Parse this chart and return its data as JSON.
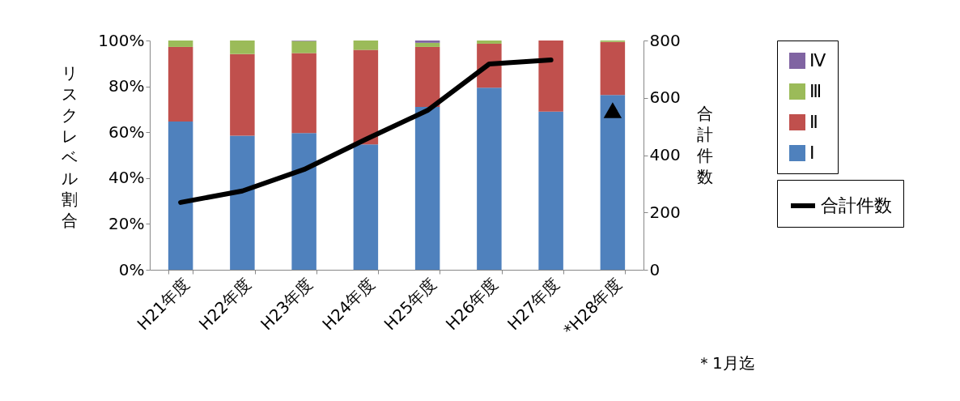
{
  "chart_data": {
    "type": "bar",
    "stacked": true,
    "categories": [
      "H21年度",
      "H22年度",
      "H23年度",
      "H24年度",
      "H25年度",
      "H26年度",
      "H27年度",
      "*H28年度"
    ],
    "series": [
      {
        "name": "Ⅰ",
        "type": "bar",
        "color": "#4f81bd",
        "values": [
          64.7,
          58.5,
          59.6,
          54.7,
          71.0,
          79.4,
          69.0,
          76.2
        ]
      },
      {
        "name": "Ⅱ",
        "type": "bar",
        "color": "#c0504d",
        "values": [
          32.5,
          35.6,
          34.9,
          41.2,
          26.2,
          19.2,
          31.0,
          23.2
        ]
      },
      {
        "name": "Ⅲ",
        "type": "bar",
        "color": "#9bbb59",
        "values": [
          2.8,
          5.9,
          5.3,
          4.1,
          1.8,
          1.4,
          0,
          0.6
        ]
      },
      {
        "name": "Ⅳ",
        "type": "bar",
        "color": "#8064a2",
        "values": [
          0,
          0,
          0.2,
          0,
          1.0,
          0,
          0,
          0
        ]
      },
      {
        "name": "合計件数",
        "type": "line",
        "axis": "y2",
        "color": "#000000",
        "line_style": "solid",
        "values": [
          235,
          275,
          350,
          455,
          556,
          718,
          732,
          null
        ]
      },
      {
        "type": "scatter",
        "axis": "y2",
        "color": "#000000",
        "marker": "triangle",
        "values": [
          null,
          null,
          null,
          null,
          null,
          null,
          null,
          557
        ]
      }
    ],
    "ylabel": "リスクレベル割合",
    "y2label": "合計件数",
    "ylim": [
      0,
      100
    ],
    "yticks": [
      {
        "value": 0,
        "label": "0%"
      },
      {
        "value": 20,
        "label": "20%"
      },
      {
        "value": 40,
        "label": "40%"
      },
      {
        "value": 60,
        "label": "60%"
      },
      {
        "value": 80,
        "label": "80%"
      },
      {
        "value": 100,
        "label": "100%"
      }
    ],
    "y2lim": [
      0,
      800
    ],
    "y2ticks": [
      0,
      200,
      400,
      600,
      800
    ],
    "grid": false,
    "legend": "right",
    "annotations": [
      "＊1月迄"
    ]
  }
}
